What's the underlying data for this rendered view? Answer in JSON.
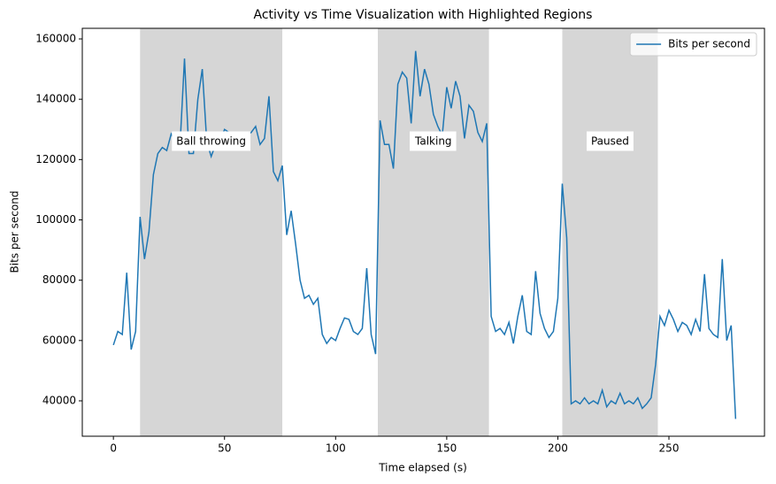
{
  "chart_data": {
    "type": "line",
    "title": "Activity vs Time Visualization with Highlighted Regions",
    "x_label": "Time elapsed (s)",
    "y_label": "Bits per second",
    "x": [
      0,
      2,
      4,
      6,
      8,
      10,
      12,
      14,
      16,
      18,
      20,
      22,
      24,
      26,
      28,
      30,
      32,
      34,
      36,
      38,
      40,
      42,
      44,
      46,
      48,
      50,
      52,
      54,
      56,
      58,
      60,
      62,
      64,
      66,
      68,
      70,
      72,
      74,
      76,
      78,
      80,
      82,
      84,
      86,
      88,
      90,
      92,
      94,
      96,
      98,
      100,
      102,
      104,
      106,
      108,
      110,
      112,
      114,
      116,
      118,
      120,
      122,
      124,
      126,
      128,
      130,
      132,
      134,
      136,
      138,
      140,
      142,
      144,
      146,
      148,
      150,
      152,
      154,
      156,
      158,
      160,
      162,
      164,
      166,
      168,
      170,
      172,
      174,
      176,
      178,
      180,
      182,
      184,
      186,
      188,
      190,
      192,
      194,
      196,
      198,
      200,
      202,
      204,
      206,
      208,
      210,
      212,
      214,
      216,
      218,
      220,
      222,
      224,
      226,
      228,
      230,
      232,
      234,
      236,
      238,
      240,
      242,
      244,
      246,
      248,
      250,
      252,
      254,
      256,
      258,
      260,
      262,
      264,
      266,
      268,
      270,
      272,
      274,
      276,
      278,
      280
    ],
    "series": [
      {
        "name": "Bits per second",
        "color": "#1f77b4",
        "values": [
          58500,
          63000,
          62000,
          82500,
          57000,
          63000,
          101000,
          87000,
          96000,
          115000,
          122000,
          124000,
          123000,
          128500,
          126000,
          125000,
          153500,
          122000,
          122000,
          140000,
          150000,
          126000,
          121000,
          125000,
          126000,
          130000,
          129000,
          128000,
          127000,
          126000,
          128000,
          129000,
          131000,
          125000,
          127000,
          141000,
          116000,
          113000,
          118000,
          95000,
          103000,
          92000,
          80000,
          74000,
          75000,
          72000,
          74000,
          62000,
          59000,
          61000,
          60000,
          64000,
          67500,
          67000,
          63000,
          62000,
          64000,
          84000,
          62000,
          55500,
          133000,
          125000,
          125000,
          117000,
          145000,
          149000,
          147000,
          132000,
          156000,
          141000,
          150000,
          145000,
          135000,
          131000,
          128000,
          144000,
          137000,
          146000,
          141000,
          127000,
          138000,
          136000,
          129000,
          126000,
          132000,
          68000,
          63000,
          64000,
          62000,
          66000,
          59000,
          68000,
          75000,
          63000,
          62000,
          83000,
          69000,
          64000,
          61000,
          63000,
          74000,
          112000,
          94000,
          39000,
          40000,
          39000,
          41000,
          39000,
          40000,
          39000,
          43500,
          38000,
          40000,
          39000,
          42500,
          39000,
          40000,
          39000,
          41000,
          37500,
          39000,
          41000,
          52000,
          68000,
          65000,
          70000,
          67000,
          63000,
          66000,
          65000,
          62000,
          67000,
          63000,
          82000,
          64000,
          62000,
          61000,
          87000,
          60000,
          65000,
          34000
        ]
      }
    ],
    "highlighted_regions": [
      {
        "start": 12,
        "end": 76,
        "label": "Ball throwing"
      },
      {
        "start": 119,
        "end": 169,
        "label": "Talking"
      },
      {
        "start": 202,
        "end": 245,
        "label": "Paused"
      }
    ],
    "region_color": "#808080",
    "xlim": [
      -14,
      293
    ],
    "ylim": [
      28260,
      163520
    ],
    "xticks": [
      0,
      50,
      100,
      150,
      200,
      250
    ],
    "yticks": [
      40000,
      60000,
      80000,
      100000,
      120000,
      140000,
      160000
    ],
    "legend": "upper right",
    "grid": false
  }
}
